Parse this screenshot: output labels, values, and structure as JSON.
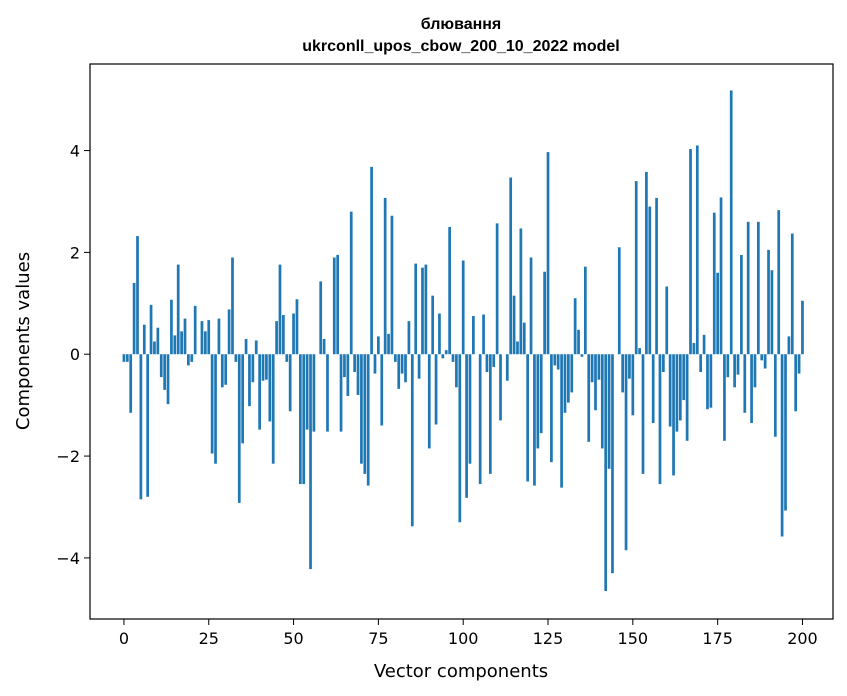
{
  "chart_data": {
    "type": "bar",
    "title": "блювання",
    "subtitle": "ukrconll_upos_cbow_200_10_2022 model",
    "xlabel": "Vector components",
    "ylabel": "Components values",
    "xlim": [
      -10,
      209
    ],
    "ylim": [
      -5.2,
      5.7
    ],
    "xticks": [
      0,
      25,
      50,
      75,
      100,
      125,
      150,
      175,
      200
    ],
    "xtick_labels": [
      "0",
      "25",
      "50",
      "75",
      "100",
      "125",
      "150",
      "175",
      "200"
    ],
    "yticks": [
      -4,
      -2,
      0,
      2,
      4
    ],
    "ytick_labels": [
      "−4",
      "−2",
      "0",
      "2",
      "4"
    ],
    "bar_color": "#1f77b4",
    "grid": false,
    "values": [
      -0.15,
      -0.15,
      -1.15,
      1.4,
      2.32,
      -2.85,
      0.58,
      -2.8,
      0.97,
      0.25,
      0.52,
      -0.45,
      -0.7,
      -0.98,
      1.07,
      0.37,
      1.76,
      0.45,
      0.7,
      -0.22,
      -0.15,
      0.95,
      0.0,
      0.65,
      0.45,
      0.67,
      -1.95,
      -2.15,
      0.7,
      -0.65,
      -0.6,
      0.88,
      1.9,
      -0.15,
      -2.92,
      -1.75,
      0.3,
      -1.02,
      -0.55,
      0.27,
      -1.48,
      -0.52,
      -0.5,
      -1.32,
      -2.15,
      0.65,
      1.76,
      0.77,
      -0.15,
      -1.12,
      0.8,
      1.08,
      -2.55,
      -2.55,
      -1.48,
      -4.22,
      -1.52,
      0.0,
      1.43,
      0.3,
      -1.52,
      0.0,
      1.9,
      1.95,
      -1.52,
      -0.45,
      -0.82,
      2.8,
      -0.35,
      -0.8,
      -2.15,
      -2.35,
      -2.58,
      3.68,
      -0.38,
      0.35,
      -1.4,
      3.07,
      0.4,
      2.72,
      -0.15,
      -0.68,
      -0.38,
      -0.55,
      0.65,
      -3.38,
      1.78,
      -0.48,
      1.7,
      1.76,
      -1.85,
      1.15,
      -1.38,
      0.8,
      -0.08,
      0.08,
      2.5,
      -0.15,
      -0.65,
      -3.3,
      1.84,
      -2.82,
      -2.15,
      0.75,
      0.0,
      -2.55,
      0.78,
      -0.35,
      -2.35,
      -0.25,
      2.57,
      -1.3,
      0.0,
      -0.52,
      3.47,
      1.15,
      0.25,
      2.47,
      0.62,
      -2.5,
      1.9,
      -2.58,
      -1.85,
      -1.55,
      1.62,
      3.97,
      -2.12,
      -0.22,
      -0.3,
      -2.62,
      -1.15,
      -0.95,
      -0.75,
      1.1,
      0.48,
      -0.05,
      1.72,
      -1.72,
      -0.55,
      -1.1,
      -0.5,
      -1.85,
      -4.65,
      -2.25,
      -4.3,
      0.0,
      2.1,
      -0.75,
      -3.85,
      -0.48,
      -1.2,
      3.4,
      0.12,
      -2.35,
      3.58,
      2.9,
      -1.35,
      3.07,
      -2.55,
      -0.35,
      1.33,
      -1.42,
      -2.38,
      -1.52,
      -1.3,
      -0.9,
      -1.7,
      4.03,
      0.22,
      4.1,
      -0.35,
      0.38,
      -1.08,
      -1.05,
      2.78,
      1.6,
      3.08,
      -1.7,
      -0.45,
      5.18,
      -0.65,
      -0.4,
      1.95,
      -1.15,
      2.6,
      -1.35,
      -0.65,
      2.6,
      -0.12,
      -0.28,
      2.05,
      1.65,
      -1.62,
      2.83,
      -3.58,
      -3.07,
      0.35,
      2.37,
      -1.12,
      -0.38,
      1.05
    ]
  }
}
